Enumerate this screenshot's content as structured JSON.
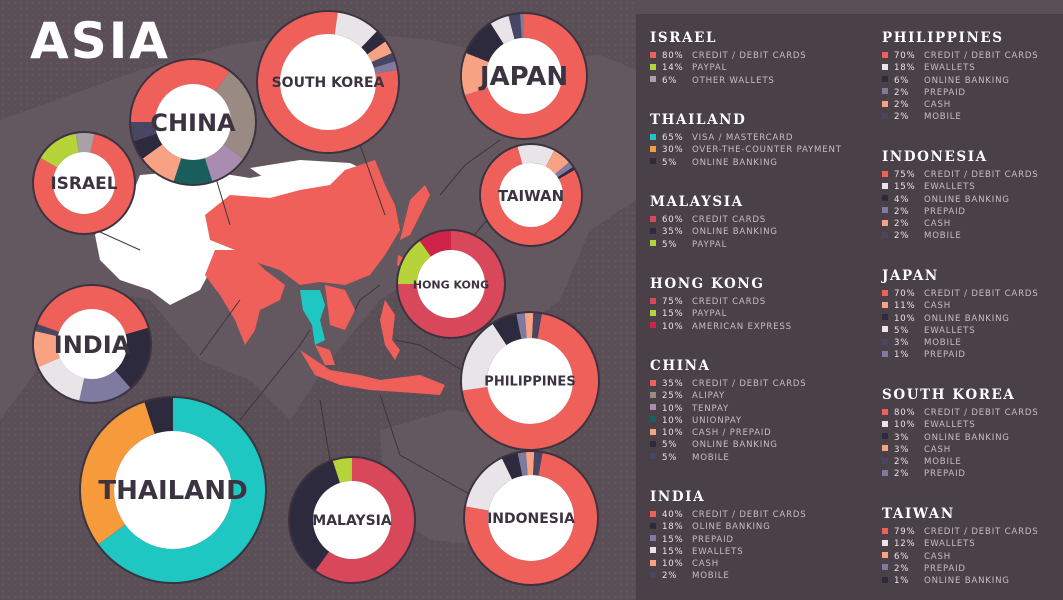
{
  "title": "ASIA",
  "colors": {
    "background": "#5b4f57",
    "panel": "#4a4047",
    "land": "#ffffff",
    "highlight": "#f0605a",
    "thailand": "#1ec7c2"
  },
  "chart_data": {
    "type": "pie",
    "title": "ASIA",
    "countries": [
      {
        "id": "israel",
        "name": "ISRAEL",
        "map_label": "ISRAEL",
        "items": [
          {
            "pct": 80,
            "label": "CREDIT / DEBIT CARDS",
            "color": "#f0605a"
          },
          {
            "pct": 14,
            "label": "PAYPAL",
            "color": "#b6d33a"
          },
          {
            "pct": 6,
            "label": "OTHER WALLETS",
            "color": "#a8a2a6"
          }
        ]
      },
      {
        "id": "thailand",
        "name": "THAILAND",
        "map_label": "THAILAND",
        "items": [
          {
            "pct": 65,
            "label": "VISA / MASTERCARD",
            "color": "#1ec7c2"
          },
          {
            "pct": 30,
            "label": "OVER-THE-COUNTER PAYMENT",
            "color": "#f79a3c"
          },
          {
            "pct": 5,
            "label": "ONLINE BANKING",
            "color": "#2e2a3e"
          }
        ]
      },
      {
        "id": "malaysia",
        "name": "MALAYSIA",
        "map_label": "MALAYSIA",
        "items": [
          {
            "pct": 60,
            "label": "CREDIT CARDS",
            "color": "#d9475a"
          },
          {
            "pct": 35,
            "label": "ONLINE BANKING",
            "color": "#2e2a3e"
          },
          {
            "pct": 5,
            "label": "PAYPAL",
            "color": "#b6d33a"
          }
        ]
      },
      {
        "id": "hong-kong",
        "name": "HONG KONG",
        "map_label": "HONG KONG",
        "items": [
          {
            "pct": 75,
            "label": "CREDIT CARDS",
            "color": "#d9475a"
          },
          {
            "pct": 15,
            "label": "PAYPAL",
            "color": "#b6d33a"
          },
          {
            "pct": 10,
            "label": "AMERICAN EXPRESS",
            "color": "#d0234a"
          }
        ]
      },
      {
        "id": "china",
        "name": "CHINA",
        "map_label": "CHINA",
        "items": [
          {
            "pct": 35,
            "label": "CREDIT / DEBIT CARDS",
            "color": "#f0605a"
          },
          {
            "pct": 25,
            "label": "ALIPAY",
            "color": "#9a8a84"
          },
          {
            "pct": 10,
            "label": "TENPAY",
            "color": "#a98db0"
          },
          {
            "pct": 10,
            "label": "UNIONPAY",
            "color": "#1a5d5d"
          },
          {
            "pct": 10,
            "label": "CASH / PREPAID",
            "color": "#f7a282"
          },
          {
            "pct": 5,
            "label": "ONLINE BANKING",
            "color": "#2e2a3e"
          },
          {
            "pct": 5,
            "label": "MOBILE",
            "color": "#494663"
          }
        ]
      },
      {
        "id": "india",
        "name": "INDIA",
        "map_label": "INDIA",
        "items": [
          {
            "pct": 40,
            "label": "CREDIT / DEBIT CARDS",
            "color": "#f0605a"
          },
          {
            "pct": 18,
            "label": "OLINE BANKING",
            "color": "#2e2a3e"
          },
          {
            "pct": 15,
            "label": "PREPAID",
            "color": "#7f7aa0"
          },
          {
            "pct": 15,
            "label": "EWALLETS",
            "color": "#e8e4e7"
          },
          {
            "pct": 10,
            "label": "CASH",
            "color": "#f7a282"
          },
          {
            "pct": 2,
            "label": "MOBILE",
            "color": "#494663"
          }
        ]
      },
      {
        "id": "philippines",
        "name": "PHILIPPINES",
        "map_label": "PHILIPPINES",
        "items": [
          {
            "pct": 70,
            "label": "CREDIT / DEBIT CARDS",
            "color": "#f0605a"
          },
          {
            "pct": 18,
            "label": "EWALLETS",
            "color": "#e8e4e7"
          },
          {
            "pct": 6,
            "label": "ONLINE BANKING",
            "color": "#2e2a3e"
          },
          {
            "pct": 2,
            "label": "PREPAID",
            "color": "#7f7aa0"
          },
          {
            "pct": 2,
            "label": "CASH",
            "color": "#f7a282"
          },
          {
            "pct": 2,
            "label": "MOBILE",
            "color": "#494663"
          }
        ]
      },
      {
        "id": "indonesia",
        "name": "INDONESIA",
        "map_label": "INDONESIA",
        "items": [
          {
            "pct": 75,
            "label": "CREDIT / DEBIT CARDS",
            "color": "#f0605a"
          },
          {
            "pct": 15,
            "label": "EWALLETS",
            "color": "#e8e4e7"
          },
          {
            "pct": 4,
            "label": "ONLINE BANKING",
            "color": "#2e2a3e"
          },
          {
            "pct": 2,
            "label": "PREPAID",
            "color": "#7f7aa0"
          },
          {
            "pct": 2,
            "label": "CASH",
            "color": "#f7a282"
          },
          {
            "pct": 2,
            "label": "MOBILE",
            "color": "#494663"
          }
        ]
      },
      {
        "id": "japan",
        "name": "JAPAN",
        "map_label": "JAPAN",
        "items": [
          {
            "pct": 70,
            "label": "CREDIT / DEBIT CARDS",
            "color": "#f0605a"
          },
          {
            "pct": 11,
            "label": "CASH",
            "color": "#f7a282"
          },
          {
            "pct": 10,
            "label": "ONLINE BANKING",
            "color": "#2e2a3e"
          },
          {
            "pct": 5,
            "label": "EWALLETS",
            "color": "#e8e4e7"
          },
          {
            "pct": 3,
            "label": "MOBILE",
            "color": "#494663"
          },
          {
            "pct": 1,
            "label": "PREPAID",
            "color": "#7f7aa0"
          }
        ]
      },
      {
        "id": "south-korea",
        "name": "SOUTH KOREA",
        "map_label": "SOUTH KOREA",
        "items": [
          {
            "pct": 80,
            "label": "CREDIT / DEBIT CARDS",
            "color": "#f0605a"
          },
          {
            "pct": 10,
            "label": "EWALLETS",
            "color": "#e8e4e7"
          },
          {
            "pct": 3,
            "label": "ONLINE BANKING",
            "color": "#2e2a3e"
          },
          {
            "pct": 3,
            "label": "CASH",
            "color": "#f7a282"
          },
          {
            "pct": 2,
            "label": "MOBILE",
            "color": "#494663"
          },
          {
            "pct": 2,
            "label": "PREPAID",
            "color": "#7f7aa0"
          }
        ]
      },
      {
        "id": "taiwan",
        "name": "TAIWAN",
        "map_label": "TAIWAN",
        "items": [
          {
            "pct": 79,
            "label": "CREDIT / DEBIT CARDS",
            "color": "#f0605a"
          },
          {
            "pct": 12,
            "label": "EWALLETS",
            "color": "#e8e4e7"
          },
          {
            "pct": 6,
            "label": "CASH",
            "color": "#f7a282"
          },
          {
            "pct": 2,
            "label": "PREPAID",
            "color": "#7f7aa0"
          },
          {
            "pct": 1,
            "label": "ONLINE BANKING",
            "color": "#2e2a3e"
          }
        ]
      }
    ]
  }
}
